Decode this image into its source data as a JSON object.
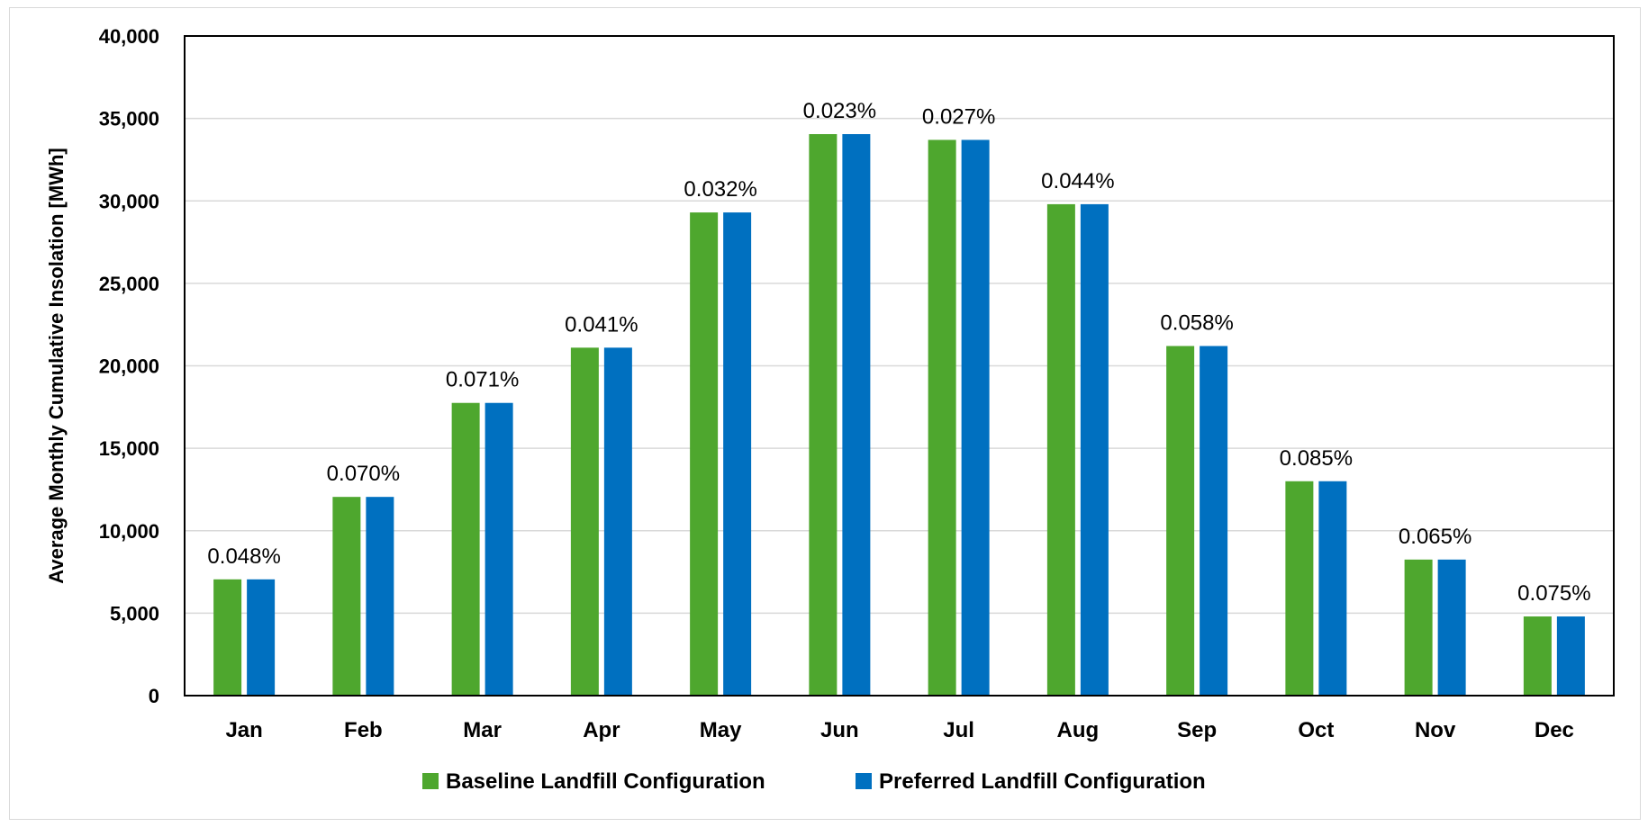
{
  "chart_data": {
    "type": "bar",
    "categories": [
      "Jan",
      "Feb",
      "Mar",
      "Apr",
      "May",
      "Jun",
      "Jul",
      "Aug",
      "Sep",
      "Oct",
      "Nov",
      "Dec"
    ],
    "series": [
      {
        "name": "Baseline Landfill Configuration",
        "color": "#4EA72E",
        "values": [
          7050,
          12050,
          17750,
          21100,
          29300,
          34050,
          33700,
          29800,
          21200,
          13000,
          8250,
          4800
        ]
      },
      {
        "name": "Preferred Landfill Configuration",
        "color": "#0070C0",
        "values": [
          7050,
          12050,
          17750,
          21100,
          29300,
          34050,
          33700,
          29800,
          21200,
          13000,
          8250,
          4800
        ]
      }
    ],
    "data_labels": [
      "0.048%",
      "0.070%",
      "0.071%",
      "0.041%",
      "0.032%",
      "0.023%",
      "0.027%",
      "0.044%",
      "0.058%",
      "0.085%",
      "0.065%",
      "0.075%"
    ],
    "title": "",
    "xlabel": "",
    "ylabel": "Average Monthly Cumulative Insolation [MWh]",
    "ylim": [
      0,
      40000
    ],
    "yticks": [
      0,
      5000,
      10000,
      15000,
      20000,
      25000,
      30000,
      35000,
      40000
    ],
    "ytick_labels": [
      "0",
      "5,000",
      "10,000",
      "15,000",
      "20,000",
      "25,000",
      "30,000",
      "35,000",
      "40,000"
    ],
    "grid": true,
    "legend_position": "bottom"
  }
}
